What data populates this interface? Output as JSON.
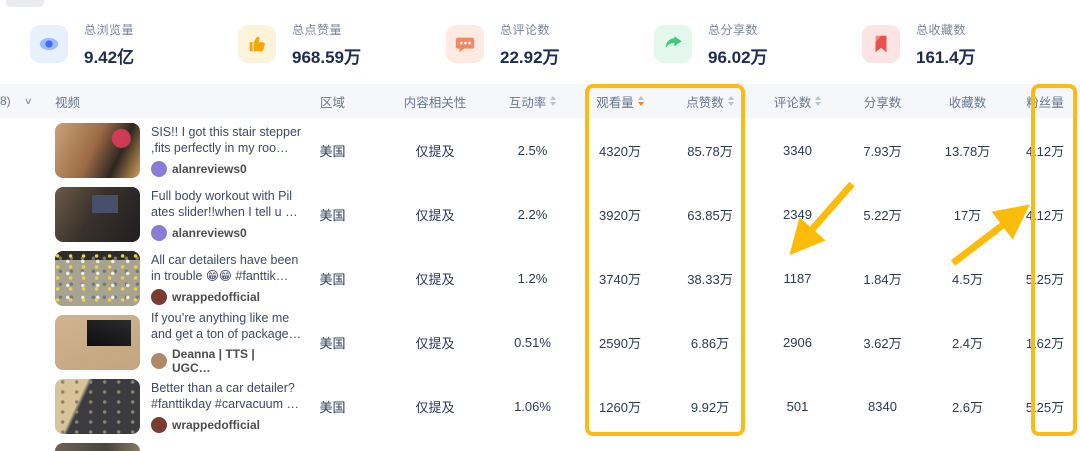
{
  "colors": {
    "annotation_yellow": "#FDBA12",
    "sort_active_orange": "#F08519",
    "stat_icon_blue": "#3E6EF5",
    "stat_icon_orange": "#F5A60A",
    "stat_icon_coral": "#F08A63",
    "stat_icon_green": "#3DCC7E",
    "stat_icon_red": "#E8544D"
  },
  "stats": [
    {
      "icon": "eye-icon",
      "icon_bg": "#E8F0FE",
      "label": "总浏览量",
      "value": "9.42亿"
    },
    {
      "icon": "thumbs-up-icon",
      "icon_bg": "#FCF3DB",
      "label": "总点赞量",
      "value": "968.59万"
    },
    {
      "icon": "comment-icon",
      "icon_bg": "#FDEBE2",
      "label": "总评论数",
      "value": "22.92万"
    },
    {
      "icon": "share-icon",
      "icon_bg": "#E4F7EC",
      "label": "总分享数",
      "value": "96.02万"
    },
    {
      "icon": "bookmark-icon",
      "icon_bg": "#FCE4E4",
      "label": "总收藏数",
      "value": "161.4万"
    }
  ],
  "table": {
    "truncated_filter": "8)",
    "columns": [
      "视频",
      "区域",
      "内容相关性",
      "互动率",
      "观看量",
      "点赞数",
      "评论数",
      "分享数",
      "收藏数",
      "粉丝量"
    ],
    "sorted_column": "观看量",
    "sort_direction": "desc",
    "rows": [
      {
        "title_line1": "SIS!! I got this stair stepper",
        "title_line2": ",fits perfectly in my roo…",
        "author": "alanreviews0",
        "avatar_color": "#8b7bd8",
        "region": "美国",
        "relevance": "仅提及",
        "engagement": "2.5%",
        "views": "4320万",
        "likes": "85.78万",
        "comments": "3340",
        "shares": "7.93万",
        "favorites": "13.78万",
        "followers": "4.12万"
      },
      {
        "title_line1": "Full body workout with Pil",
        "title_line2": "ates slider!!when I tell u …",
        "author": "alanreviews0",
        "avatar_color": "#8b7bd8",
        "region": "美国",
        "relevance": "仅提及",
        "engagement": "2.2%",
        "views": "3920万",
        "likes": "63.85万",
        "comments": "2349",
        "shares": "5.22万",
        "favorites": "17万",
        "followers": "4.12万"
      },
      {
        "title_line1": "All car detailers have been",
        "title_line2": "in trouble 😁😁 #fanttik…",
        "author": "wrappedofficial",
        "avatar_color": "#7a3b32",
        "region": "美国",
        "relevance": "仅提及",
        "engagement": "1.2%",
        "views": "3740万",
        "likes": "38.33万",
        "comments": "1187",
        "shares": "1.84万",
        "favorites": "4.5万",
        "followers": "5.25万"
      },
      {
        "title_line1": "If you’re anything like me",
        "title_line2": "and get a ton of package…",
        "author": "Deanna | TTS | UGC…",
        "avatar_color": "#b08968",
        "region": "美国",
        "relevance": "仅提及",
        "engagement": "0.51%",
        "views": "2590万",
        "likes": "6.86万",
        "comments": "2906",
        "shares": "3.62万",
        "favorites": "2.4万",
        "followers": "1.62万"
      },
      {
        "title_line1": "Better than a car detailer?",
        "title_line2": "#fanttikday #carvacuum …",
        "author": "wrappedofficial",
        "avatar_color": "#7a3b32",
        "region": "美国",
        "relevance": "仅提及",
        "engagement": "1.06%",
        "views": "1260万",
        "likes": "9.92万",
        "comments": "501",
        "shares": "8340",
        "favorites": "2.6万",
        "followers": "5.25万"
      }
    ]
  }
}
